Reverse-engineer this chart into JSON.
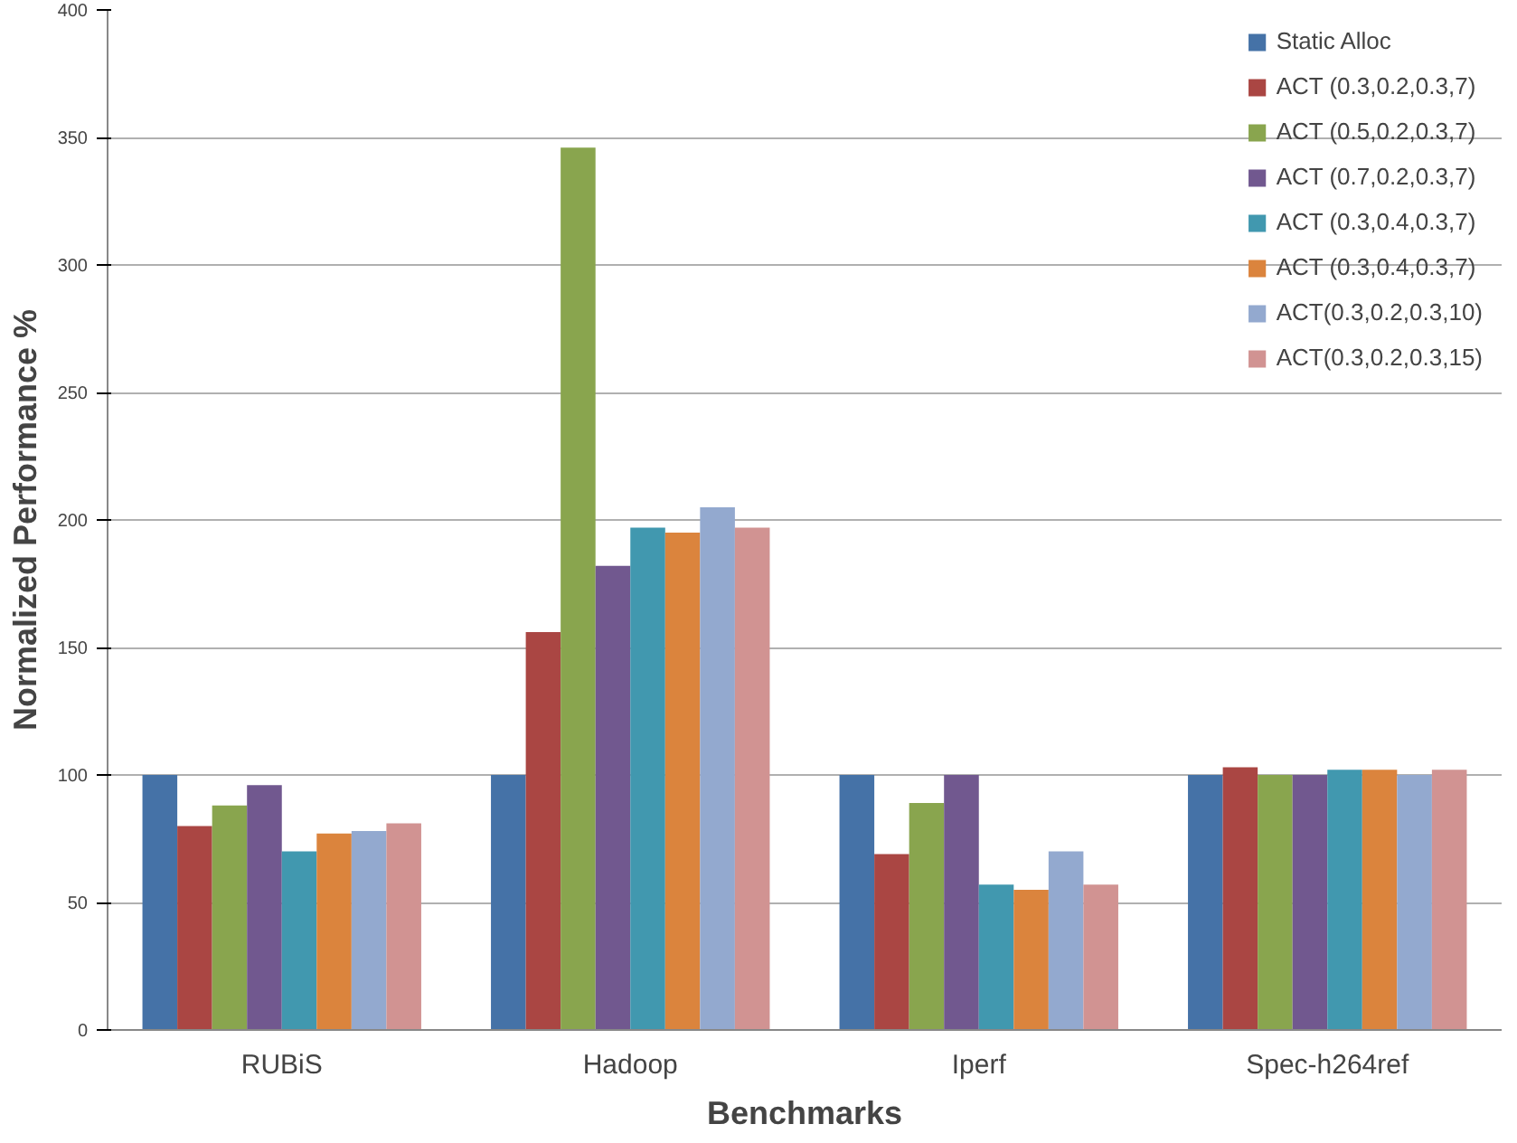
{
  "chart_data": {
    "type": "bar",
    "xlabel": "Benchmarks",
    "ylabel": "Normalized Performance %",
    "categories": [
      "RUBiS",
      "Hadoop",
      "Iperf",
      "Spec-h264ref"
    ],
    "series": [
      {
        "name": "Static Alloc",
        "color": "#4572a7",
        "values": [
          100,
          100,
          100,
          100
        ]
      },
      {
        "name": "ACT (0.3,0.2,0.3,7)",
        "color": "#aa4643",
        "values": [
          80,
          156,
          69,
          103
        ]
      },
      {
        "name": "ACT (0.5,0.2,0.3,7)",
        "color": "#89a54e",
        "values": [
          88,
          346,
          89,
          100
        ]
      },
      {
        "name": "ACT (0.7,0.2,0.3,7)",
        "color": "#71588f",
        "values": [
          96,
          182,
          100,
          100
        ]
      },
      {
        "name": "ACT (0.3,0.4,0.3,7)",
        "color": "#4198af",
        "values": [
          70,
          197,
          57,
          102
        ]
      },
      {
        "name": "ACT (0.3,0.4,0.3,7)",
        "color": "#db843d",
        "values": [
          77,
          195,
          55,
          102
        ]
      },
      {
        "name": "ACT(0.3,0.2,0.3,10)",
        "color": "#93a9cf",
        "values": [
          78,
          205,
          70,
          100
        ]
      },
      {
        "name": "ACT(0.3,0.2,0.3,15)",
        "color": "#d19392",
        "values": [
          81,
          197,
          57,
          102
        ]
      }
    ],
    "ylim": [
      0,
      400
    ],
    "yticks": [
      0,
      50,
      100,
      150,
      200,
      250,
      300,
      350,
      400
    ],
    "grid": "y",
    "legend": "top right"
  }
}
